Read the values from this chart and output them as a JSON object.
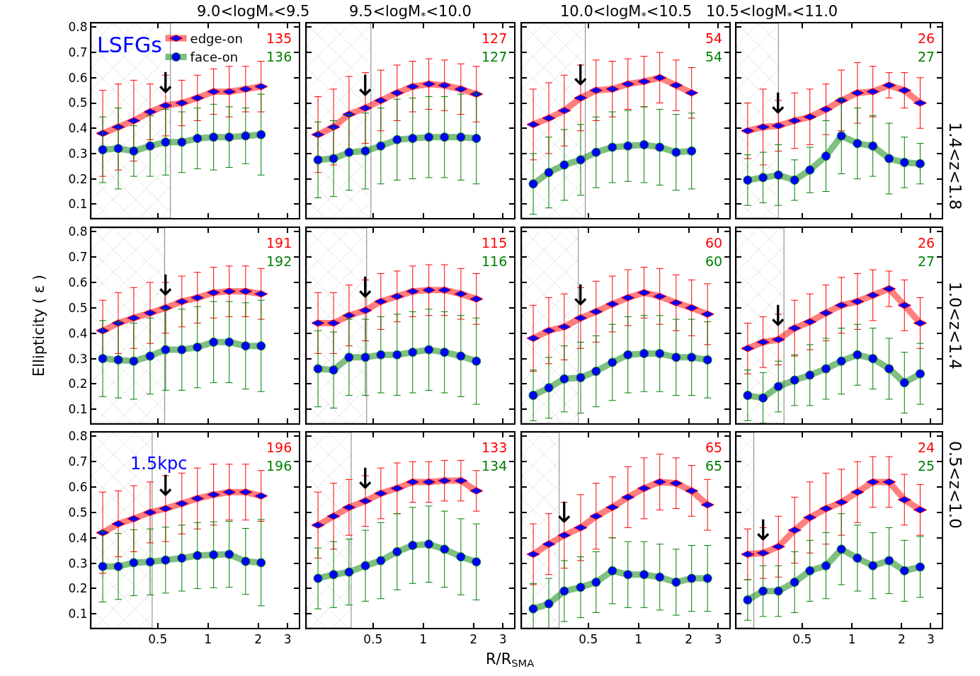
{
  "chart_data": [
    {
      "type": "line",
      "title": "9.0<logM$_{*}$<9.5",
      "legend": "top",
      "log": "x",
      "xlim": [
        0.2,
        3.5
      ],
      "xticks": [
        0.5,
        1,
        2,
        3
      ],
      "ylim": [
        0.045,
        0.815
      ],
      "yticks": [
        0.1,
        0.2,
        0.3,
        0.4,
        0.5,
        0.6,
        0.7,
        0.8
      ],
      "tick_labels": "y",
      "x": [
        0.234,
        0.29,
        0.359,
        0.45,
        0.557,
        0.697,
        0.864,
        1.08,
        1.34,
        1.68,
        2.08
      ],
      "series": [
        {
          "name": "edge-on",
          "color": "#ff0000",
          "marker": "diamond",
          "values": [
            0.38,
            0.405,
            0.43,
            0.465,
            0.49,
            0.5,
            0.52,
            0.545,
            0.545,
            0.555,
            0.565
          ],
          "errors": [
            0.17,
            0.17,
            0.16,
            0.11,
            0.12,
            0.09,
            0.09,
            0.09,
            0.1,
            0.09,
            0.1
          ]
        },
        {
          "name": "face-on",
          "color": "#008000",
          "marker": "circle",
          "values": [
            0.315,
            0.32,
            0.31,
            0.33,
            0.345,
            0.345,
            0.36,
            0.365,
            0.365,
            0.37,
            0.375
          ],
          "errors": [
            0.13,
            0.16,
            0.1,
            0.12,
            0.13,
            0.12,
            0.12,
            0.13,
            0.12,
            0.11,
            0.16
          ]
        }
      ],
      "bands": [
        {
          "axis": "x",
          "from": 0.2,
          "to": 0.596,
          "color": "#808080"
        }
      ],
      "annotations": [
        "135",
        "136",
        {
          "text": "↓",
          "x": 0.557,
          "y": 0.51
        },
        "LSFGs"
      ]
    },
    {
      "type": "line",
      "title": "9.5<logM$_{*}$<10.0",
      "log": "x",
      "xlim": [
        0.2,
        3.5
      ],
      "xticks": [
        0.5,
        1,
        2,
        3
      ],
      "ylim": [
        0.045,
        0.815
      ],
      "yticks": [
        0.1,
        0.2,
        0.3,
        0.4,
        0.5,
        0.6,
        0.7,
        0.8
      ],
      "tick_labels": false,
      "x": [
        0.234,
        0.29,
        0.359,
        0.45,
        0.557,
        0.697,
        0.864,
        1.08,
        1.34,
        1.68,
        2.08
      ],
      "series": [
        {
          "color": "#ff0000",
          "marker": "diamond",
          "values": [
            0.375,
            0.405,
            0.455,
            0.48,
            0.51,
            0.54,
            0.565,
            0.575,
            0.57,
            0.555,
            0.535
          ],
          "errors": [
            0.15,
            0.15,
            0.15,
            0.14,
            0.12,
            0.11,
            0.1,
            0.1,
            0.1,
            0.1,
            0.11
          ]
        },
        {
          "color": "#008000",
          "marker": "circle",
          "values": [
            0.275,
            0.28,
            0.305,
            0.31,
            0.33,
            0.355,
            0.36,
            0.365,
            0.365,
            0.365,
            0.36
          ],
          "errors": [
            0.15,
            0.15,
            0.15,
            0.15,
            0.15,
            0.16,
            0.16,
            0.16,
            0.16,
            0.17,
            0.18
          ]
        }
      ],
      "bands": [
        {
          "axis": "x",
          "from": 0.2,
          "to": 0.486,
          "color": "#808080"
        }
      ],
      "annotations": [
        "127",
        "127",
        {
          "text": "↓",
          "x": 0.45,
          "y": 0.5
        }
      ]
    },
    {
      "type": "line",
      "title": "10.0<logM$_{*}$<10.5",
      "log": "x",
      "xlim": [
        0.2,
        3.5
      ],
      "xticks": [
        0.5,
        1,
        2,
        3
      ],
      "ylim": [
        0.045,
        0.815
      ],
      "yticks": [
        0.1,
        0.2,
        0.3,
        0.4,
        0.5,
        0.6,
        0.7,
        0.8
      ],
      "tick_labels": false,
      "x": [
        0.234,
        0.29,
        0.359,
        0.45,
        0.557,
        0.697,
        0.864,
        1.08,
        1.34,
        1.68,
        2.08
      ],
      "series": [
        {
          "color": "#ff0000",
          "marker": "diamond",
          "values": [
            0.415,
            0.44,
            0.47,
            0.52,
            0.55,
            0.555,
            0.575,
            0.585,
            0.6,
            0.57,
            0.54
          ],
          "errors": [
            0.14,
            0.14,
            0.14,
            0.13,
            0.12,
            0.11,
            0.1,
            0.1,
            0.1,
            0.1,
            0.1
          ]
        },
        {
          "color": "#008000",
          "marker": "circle",
          "values": [
            0.18,
            0.225,
            0.255,
            0.275,
            0.305,
            0.325,
            0.33,
            0.335,
            0.325,
            0.305,
            0.31
          ],
          "errors": [
            0.12,
            0.14,
            0.14,
            0.14,
            0.14,
            0.14,
            0.14,
            0.15,
            0.15,
            0.15,
            0.15
          ]
        }
      ],
      "bands": [
        {
          "axis": "x",
          "from": 0.2,
          "to": 0.48,
          "color": "#808080"
        }
      ],
      "annotations": [
        "54",
        "54",
        {
          "text": "↓",
          "x": 0.45,
          "y": 0.54
        }
      ]
    },
    {
      "type": "line",
      "title": "10.5<logM$_{*}$<11.0",
      "y2label": "1.4<z<1.8",
      "log": "x",
      "xlim": [
        0.2,
        3.5
      ],
      "xticks": [
        0.5,
        1,
        2,
        3
      ],
      "ylim": [
        0.045,
        0.815
      ],
      "yticks": [
        0.1,
        0.2,
        0.3,
        0.4,
        0.5,
        0.6,
        0.7,
        0.8
      ],
      "tick_labels": false,
      "x": [
        0.234,
        0.29,
        0.359,
        0.45,
        0.557,
        0.697,
        0.864,
        1.08,
        1.34,
        1.68,
        2.08,
        2.59
      ],
      "series": [
        {
          "color": "#ff0000",
          "marker": "diamond",
          "values": [
            0.39,
            0.405,
            0.41,
            0.43,
            0.445,
            0.475,
            0.51,
            0.54,
            0.545,
            0.57,
            0.55,
            0.5
          ],
          "errors": [
            0.11,
            0.15,
            0.1,
            0.11,
            0.11,
            0.1,
            0.12,
            0.12,
            0.1,
            0.05,
            0.07,
            0.1
          ]
        },
        {
          "color": "#008000",
          "marker": "circle",
          "values": [
            0.195,
            0.205,
            0.215,
            0.195,
            0.235,
            0.29,
            0.37,
            0.34,
            0.33,
            0.28,
            0.265,
            0.26
          ],
          "errors": [
            0.1,
            0.1,
            0.12,
            0.08,
            0.09,
            0.14,
            0.15,
            0.14,
            0.12,
            0.14,
            0.1,
            0.08
          ]
        }
      ],
      "bands": [
        {
          "axis": "x",
          "from": 0.2,
          "to": 0.359,
          "color": "#808080"
        }
      ],
      "annotations": [
        "26",
        "27",
        {
          "text": "↓",
          "x": 0.359,
          "y": 0.43
        }
      ]
    },
    {
      "type": "line",
      "ylabel": "Ellipticity ( ε )",
      "log": "x",
      "xlim": [
        0.2,
        3.5
      ],
      "xticks": [
        0.5,
        1,
        2,
        3
      ],
      "ylim": [
        0.045,
        0.815
      ],
      "yticks": [
        0.1,
        0.2,
        0.3,
        0.4,
        0.5,
        0.6,
        0.7,
        0.8
      ],
      "tick_labels": "y",
      "x": [
        0.234,
        0.29,
        0.359,
        0.45,
        0.557,
        0.697,
        0.864,
        1.08,
        1.34,
        1.68,
        2.08
      ],
      "series": [
        {
          "color": "#ff0000",
          "marker": "diamond",
          "values": [
            0.41,
            0.44,
            0.46,
            0.48,
            0.5,
            0.525,
            0.54,
            0.56,
            0.565,
            0.565,
            0.555
          ],
          "errors": [
            0.12,
            0.12,
            0.12,
            0.12,
            0.1,
            0.1,
            0.1,
            0.1,
            0.1,
            0.1,
            0.1
          ]
        },
        {
          "color": "#008000",
          "marker": "circle",
          "values": [
            0.3,
            0.295,
            0.29,
            0.31,
            0.335,
            0.335,
            0.345,
            0.365,
            0.365,
            0.35,
            0.35
          ],
          "errors": [
            0.15,
            0.15,
            0.15,
            0.15,
            0.16,
            0.16,
            0.16,
            0.16,
            0.16,
            0.17,
            0.18
          ]
        }
      ],
      "bands": [
        {
          "axis": "x",
          "from": 0.2,
          "to": 0.55,
          "color": "#808080"
        }
      ],
      "annotations": [
        "191",
        "192",
        {
          "text": "↓",
          "x": 0.557,
          "y": 0.52
        }
      ]
    },
    {
      "type": "line",
      "log": "x",
      "xlim": [
        0.2,
        3.5
      ],
      "xticks": [
        0.5,
        1,
        2,
        3
      ],
      "ylim": [
        0.045,
        0.815
      ],
      "yticks": [
        0.1,
        0.2,
        0.3,
        0.4,
        0.5,
        0.6,
        0.7,
        0.8
      ],
      "tick_labels": false,
      "x": [
        0.234,
        0.29,
        0.359,
        0.45,
        0.557,
        0.697,
        0.864,
        1.08,
        1.34,
        1.68,
        2.08
      ],
      "series": [
        {
          "color": "#ff0000",
          "marker": "diamond",
          "values": [
            0.44,
            0.44,
            0.47,
            0.49,
            0.525,
            0.545,
            0.565,
            0.57,
            0.57,
            0.555,
            0.535
          ],
          "errors": [
            0.12,
            0.12,
            0.12,
            0.12,
            0.11,
            0.1,
            0.1,
            0.1,
            0.1,
            0.1,
            0.1
          ]
        },
        {
          "color": "#008000",
          "marker": "circle",
          "values": [
            0.26,
            0.255,
            0.305,
            0.305,
            0.315,
            0.315,
            0.325,
            0.335,
            0.325,
            0.31,
            0.29
          ],
          "errors": [
            0.15,
            0.15,
            0.15,
            0.15,
            0.15,
            0.16,
            0.16,
            0.16,
            0.16,
            0.16,
            0.17
          ]
        }
      ],
      "bands": [
        {
          "axis": "x",
          "from": 0.2,
          "to": 0.458,
          "color": "#808080"
        }
      ],
      "annotations": [
        "115",
        "116",
        {
          "text": "↓",
          "x": 0.45,
          "y": 0.51
        }
      ]
    },
    {
      "type": "line",
      "log": "x",
      "xlim": [
        0.2,
        3.5
      ],
      "xticks": [
        0.5,
        1,
        2,
        3
      ],
      "ylim": [
        0.045,
        0.815
      ],
      "yticks": [
        0.1,
        0.2,
        0.3,
        0.4,
        0.5,
        0.6,
        0.7,
        0.8
      ],
      "tick_labels": false,
      "x": [
        0.234,
        0.29,
        0.359,
        0.45,
        0.557,
        0.697,
        0.864,
        1.08,
        1.34,
        1.68,
        2.08,
        2.59
      ],
      "series": [
        {
          "color": "#ff0000",
          "marker": "diamond",
          "values": [
            0.38,
            0.41,
            0.425,
            0.46,
            0.485,
            0.515,
            0.54,
            0.56,
            0.545,
            0.52,
            0.5,
            0.475
          ],
          "errors": [
            0.13,
            0.13,
            0.13,
            0.12,
            0.12,
            0.11,
            0.11,
            0.1,
            0.11,
            0.11,
            0.11,
            0.12
          ]
        },
        {
          "color": "#008000",
          "marker": "circle",
          "values": [
            0.155,
            0.185,
            0.22,
            0.225,
            0.25,
            0.285,
            0.315,
            0.32,
            0.32,
            0.305,
            0.305,
            0.295
          ],
          "errors": [
            0.1,
            0.12,
            0.13,
            0.14,
            0.14,
            0.15,
            0.15,
            0.15,
            0.15,
            0.15,
            0.15,
            0.15
          ]
        }
      ],
      "bands": [
        {
          "axis": "x",
          "from": 0.2,
          "to": 0.436,
          "color": "#808080"
        }
      ],
      "annotations": [
        "60",
        "60",
        {
          "text": "↓",
          "x": 0.45,
          "y": 0.48
        }
      ]
    },
    {
      "type": "line",
      "y2label": "1.0<z<1.4",
      "log": "x",
      "xlim": [
        0.2,
        3.5
      ],
      "xticks": [
        0.5,
        1,
        2,
        3
      ],
      "ylim": [
        0.045,
        0.815
      ],
      "yticks": [
        0.1,
        0.2,
        0.3,
        0.4,
        0.5,
        0.6,
        0.7,
        0.8
      ],
      "tick_labels": false,
      "x": [
        0.234,
        0.29,
        0.359,
        0.45,
        0.557,
        0.697,
        0.864,
        1.08,
        1.34,
        1.68,
        2.08,
        2.59
      ],
      "series": [
        {
          "color": "#ff0000",
          "marker": "diamond",
          "values": [
            0.34,
            0.365,
            0.375,
            0.42,
            0.445,
            0.48,
            0.51,
            0.525,
            0.55,
            0.575,
            0.51,
            0.44
          ],
          "errors": [
            0.1,
            0.1,
            0.1,
            0.11,
            0.11,
            0.11,
            0.11,
            0.11,
            0.1,
            0.07,
            0.1,
            0.1
          ]
        },
        {
          "color": "#008000",
          "marker": "circle",
          "values": [
            0.155,
            0.145,
            0.19,
            0.215,
            0.235,
            0.26,
            0.29,
            0.315,
            0.3,
            0.26,
            0.205,
            0.24
          ],
          "errors": [
            0.1,
            0.1,
            0.1,
            0.1,
            0.12,
            0.12,
            0.13,
            0.12,
            0.12,
            0.12,
            0.12,
            0.12
          ]
        }
      ],
      "bands": [
        {
          "axis": "x",
          "from": 0.2,
          "to": 0.388,
          "color": "#808080"
        }
      ],
      "annotations": [
        "26",
        "27",
        {
          "text": "↓",
          "x": 0.359,
          "y": 0.4
        }
      ]
    },
    {
      "type": "line",
      "log": "x",
      "xlim": [
        0.2,
        3.5
      ],
      "xticks": [
        0.5,
        1,
        2,
        3
      ],
      "ylim": [
        0.045,
        0.815
      ],
      "yticks": [
        0.1,
        0.2,
        0.3,
        0.4,
        0.5,
        0.6,
        0.7,
        0.8
      ],
      "x": [
        0.234,
        0.29,
        0.359,
        0.45,
        0.557,
        0.697,
        0.864,
        1.08,
        1.34,
        1.68,
        2.08
      ],
      "series": [
        {
          "color": "#ff0000",
          "marker": "diamond",
          "values": [
            0.42,
            0.455,
            0.475,
            0.5,
            0.515,
            0.535,
            0.555,
            0.57,
            0.58,
            0.58,
            0.565
          ],
          "errors": [
            0.16,
            0.13,
            0.13,
            0.12,
            0.13,
            0.12,
            0.12,
            0.12,
            0.11,
            0.11,
            0.1
          ]
        },
        {
          "color": "#008000",
          "marker": "circle",
          "values": [
            0.287,
            0.287,
            0.302,
            0.305,
            0.312,
            0.32,
            0.33,
            0.333,
            0.335,
            0.307,
            0.302
          ],
          "errors": [
            0.14,
            0.13,
            0.13,
            0.13,
            0.13,
            0.13,
            0.13,
            0.13,
            0.13,
            0.13,
            0.17
          ]
        }
      ],
      "bands": [
        {
          "axis": "x",
          "from": 0.2,
          "to": 0.463,
          "color": "#808080"
        }
      ],
      "annotations": [
        "196",
        "196",
        {
          "text": "↓",
          "x": 0.557,
          "y": 0.535
        },
        "1.5kpc"
      ]
    },
    {
      "type": "line",
      "xlabel": "R/R$_{SMA}$",
      "log": "x",
      "xlim": [
        0.2,
        3.5
      ],
      "xticks": [
        0.5,
        1,
        2,
        3
      ],
      "ylim": [
        0.045,
        0.815
      ],
      "yticks": [
        0.1,
        0.2,
        0.3,
        0.4,
        0.5,
        0.6,
        0.7,
        0.8
      ],
      "tick_labels": "x",
      "x": [
        0.234,
        0.29,
        0.359,
        0.45,
        0.557,
        0.697,
        0.864,
        1.08,
        1.34,
        1.68,
        2.08
      ],
      "series": [
        {
          "color": "#ff0000",
          "marker": "diamond",
          "values": [
            0.45,
            0.485,
            0.52,
            0.545,
            0.575,
            0.595,
            0.62,
            0.62,
            0.625,
            0.625,
            0.585
          ],
          "errors": [
            0.13,
            0.13,
            0.11,
            0.1,
            0.1,
            0.1,
            0.08,
            0.08,
            0.08,
            0.08,
            0.08
          ]
        },
        {
          "color": "#008000",
          "marker": "circle",
          "values": [
            0.24,
            0.255,
            0.265,
            0.29,
            0.31,
            0.345,
            0.37,
            0.375,
            0.355,
            0.325,
            0.305
          ],
          "errors": [
            0.12,
            0.13,
            0.13,
            0.14,
            0.15,
            0.15,
            0.15,
            0.15,
            0.15,
            0.15,
            0.15
          ]
        }
      ],
      "bands": [
        {
          "axis": "x",
          "from": 0.2,
          "to": 0.37,
          "color": "#808080"
        }
      ],
      "annotations": [
        "133",
        "134",
        {
          "text": "↓",
          "x": 0.45,
          "y": 0.565
        }
      ]
    },
    {
      "type": "line",
      "log": "x",
      "xlim": [
        0.2,
        3.5
      ],
      "xticks": [
        0.5,
        1,
        2,
        3
      ],
      "ylim": [
        0.045,
        0.815
      ],
      "yticks": [
        0.1,
        0.2,
        0.3,
        0.4,
        0.5,
        0.6,
        0.7,
        0.8
      ],
      "tick_labels": "x",
      "x": [
        0.234,
        0.29,
        0.359,
        0.45,
        0.557,
        0.697,
        0.864,
        1.08,
        1.34,
        1.68,
        2.08,
        2.59
      ],
      "series": [
        {
          "color": "#ff0000",
          "marker": "diamond",
          "values": [
            0.335,
            0.375,
            0.41,
            0.44,
            0.485,
            0.52,
            0.56,
            0.595,
            0.62,
            0.615,
            0.585,
            0.53
          ],
          "errors": [
            0.12,
            0.12,
            0.13,
            0.13,
            0.13,
            0.12,
            0.12,
            0.12,
            0.11,
            0.1,
            0.1,
            0.1
          ]
        },
        {
          "color": "#008000",
          "marker": "circle",
          "values": [
            0.12,
            0.14,
            0.19,
            0.205,
            0.225,
            0.27,
            0.255,
            0.255,
            0.245,
            0.225,
            0.24,
            0.24
          ],
          "errors": [
            0.1,
            0.1,
            0.12,
            0.12,
            0.12,
            0.13,
            0.13,
            0.13,
            0.13,
            0.13,
            0.13,
            0.13
          ]
        }
      ],
      "bands": [
        {
          "axis": "x",
          "from": 0.2,
          "to": 0.335,
          "color": "#808080"
        }
      ],
      "annotations": [
        "65",
        "65",
        {
          "text": "↓",
          "x": 0.359,
          "y": 0.43
        }
      ]
    },
    {
      "type": "line",
      "y2label": "0.5<z<1.0",
      "log": "x",
      "xlim": [
        0.2,
        3.5
      ],
      "xticks": [
        0.5,
        1,
        2,
        3
      ],
      "ylim": [
        0.045,
        0.815
      ],
      "yticks": [
        0.1,
        0.2,
        0.3,
        0.4,
        0.5,
        0.6,
        0.7,
        0.8
      ],
      "tick_labels": "x",
      "x": [
        0.234,
        0.29,
        0.359,
        0.45,
        0.557,
        0.697,
        0.864,
        1.08,
        1.34,
        1.68,
        2.08,
        2.59
      ],
      "series": [
        {
          "color": "#ff0000",
          "marker": "diamond",
          "values": [
            0.335,
            0.34,
            0.365,
            0.43,
            0.48,
            0.515,
            0.54,
            0.58,
            0.62,
            0.62,
            0.55,
            0.51
          ],
          "errors": [
            0.1,
            0.1,
            0.12,
            0.13,
            0.14,
            0.14,
            0.13,
            0.12,
            0.1,
            0.1,
            0.1,
            0.1
          ]
        },
        {
          "color": "#008000",
          "marker": "circle",
          "values": [
            0.155,
            0.19,
            0.19,
            0.225,
            0.27,
            0.29,
            0.355,
            0.32,
            0.29,
            0.31,
            0.27,
            0.285
          ],
          "errors": [
            0.08,
            0.1,
            0.1,
            0.12,
            0.12,
            0.13,
            0.14,
            0.13,
            0.13,
            0.13,
            0.12,
            0.12
          ]
        }
      ],
      "bands": [
        {
          "axis": "x",
          "from": 0.2,
          "to": 0.255,
          "color": "#808080"
        }
      ],
      "annotations": [
        "24",
        "25",
        {
          "text": "↓",
          "x": 0.29,
          "y": 0.36
        }
      ]
    }
  ]
}
